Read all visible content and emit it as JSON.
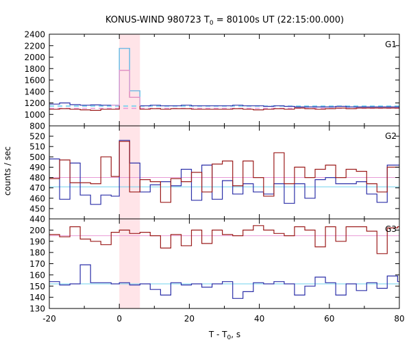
{
  "chart_data": {
    "type": "line",
    "title_main": "KONUS-WIND 980723 T",
    "title_sub": "0",
    "title_rest": " = 80100s UT (22:15:00.000)",
    "xlabel_main": "T - T",
    "xlabel_sub": "0",
    "xlabel_rest": ", s",
    "ylabel": "counts / sec",
    "xlim": [
      -20,
      80
    ],
    "x_ticks": [
      "-20",
      "0",
      "20",
      "40",
      "60",
      "80"
    ],
    "shaded_interval": [
      0,
      5.888
    ],
    "colors": {
      "shade": "#ffe4e8",
      "raw_blue": "#2b2fa8",
      "raw_red": "#9b1a1a",
      "fit_blue": "#6fd0ee",
      "fit_pink": "#e89ad6",
      "frame": "#000000"
    },
    "bin_edges": [
      -20,
      -17.056,
      -14.112,
      -11.168,
      -8.224,
      -5.28,
      -2.336,
      0,
      2.944,
      5.888,
      8.832,
      11.776,
      14.72,
      17.664,
      20.608,
      23.552,
      26.496,
      29.44,
      32.384,
      35.328,
      38.272,
      41.216,
      44.16,
      47.104,
      50.048,
      52.992,
      55.936,
      58.88,
      61.824,
      64.768,
      67.712,
      70.656,
      73.6,
      76.544,
      79.488,
      80
    ],
    "panels": [
      {
        "label": "G1",
        "ylim": [
          800,
          2400
        ],
        "y_ticks": [
          "800",
          "1000",
          "1200",
          "1400",
          "1600",
          "1800",
          "2000",
          "2200",
          "2400"
        ],
        "series": [
          {
            "role": "raw_blue",
            "values": [
              1180,
              1200,
              1170,
              1160,
              1165,
              1160,
              1160,
              2150,
              1410,
              1150,
              1160,
              1150,
              1150,
              1160,
              1150,
              1150,
              1150,
              1150,
              1160,
              1150,
              1150,
              1140,
              1150,
              1140,
              1130,
              1130,
              1130,
              1130,
              1140,
              1130,
              1130,
              1130,
              1130,
              1130,
              1130
            ]
          },
          {
            "role": "raw_red",
            "values": [
              1090,
              1100,
              1090,
              1080,
              1070,
              1090,
              1090,
              1770,
              1300,
              1090,
              1100,
              1090,
              1100,
              1100,
              1090,
              1090,
              1090,
              1090,
              1100,
              1090,
              1080,
              1090,
              1100,
              1090,
              1110,
              1100,
              1090,
              1100,
              1110,
              1100,
              1110,
              1110,
              1110,
              1110,
              1110
            ]
          }
        ],
        "fits": [
          {
            "role": "fit_blue",
            "dashed": true,
            "value": 1145
          },
          {
            "role": "fit_pink",
            "dashed": true,
            "value": 1105
          }
        ]
      },
      {
        "label": "G2",
        "ylim": [
          440,
          530
        ],
        "y_ticks": [
          "440",
          "450",
          "460",
          "470",
          "480",
          "490",
          "500",
          "510",
          "520"
        ],
        "series": [
          {
            "role": "raw_blue",
            "values": [
              498,
              459,
              494,
              463,
              454,
              463,
              462,
              516,
              494,
              466,
              473,
              476,
              472,
              488,
              458,
              492,
              459,
              477,
              464,
              474,
              466,
              464,
              474,
              455,
              474,
              460,
              478,
              480,
              474,
              474,
              476,
              464,
              456,
              492,
              492
            ]
          },
          {
            "role": "raw_red",
            "values": [
              479,
              497,
              475,
              475,
              474,
              500,
              481,
              515,
              466,
              478,
              476,
              456,
              479,
              476,
              485,
              466,
              493,
              496,
              472,
              496,
              480,
              462,
              504,
              474,
              490,
              480,
              488,
              492,
              480,
              488,
              486,
              474,
              466,
              490,
              490
            ]
          }
        ],
        "fits": [
          {
            "role": "fit_blue",
            "dashed": false,
            "value": 471
          },
          {
            "role": "fit_pink",
            "dashed": false,
            "value": 480
          }
        ]
      },
      {
        "label": "G3",
        "ylim": [
          130,
          210
        ],
        "y_ticks": [
          "130",
          "140",
          "150",
          "160",
          "170",
          "180",
          "190",
          "200"
        ],
        "series": [
          {
            "role": "raw_blue",
            "values": [
              154,
              151,
              152,
              169,
              153,
              153,
              152,
              153,
              151,
              152,
              147,
              142,
              153,
              151,
              152,
              149,
              152,
              154,
              139,
              145,
              153,
              152,
              154,
              152,
              142,
              150,
              158,
              153,
              142,
              152,
              146,
              153,
              148,
              159,
              154
            ]
          },
          {
            "role": "raw_red",
            "values": [
              196,
              194,
              203,
              192,
              190,
              187,
              198,
              200,
              197,
              198,
              195,
              184,
              196,
              186,
              200,
              188,
              200,
              196,
              195,
              200,
              204,
              200,
              197,
              195,
              203,
              200,
              185,
              203,
              190,
              203,
              203,
              199,
              179,
              202,
              203
            ]
          }
        ],
        "fits": [
          {
            "role": "fit_blue",
            "dashed": false,
            "value": 152
          },
          {
            "role": "fit_pink",
            "dashed": false,
            "value": 195
          }
        ]
      }
    ]
  }
}
